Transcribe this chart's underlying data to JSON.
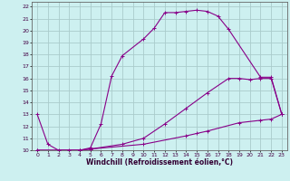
{
  "xlabel": "Windchill (Refroidissement éolien,°C)",
  "background_color": "#cdf0f0",
  "grid_color": "#aacccc",
  "line_color": "#880088",
  "xlim": [
    -0.5,
    23.5
  ],
  "ylim": [
    10,
    22.4
  ],
  "yticks": [
    10,
    11,
    12,
    13,
    14,
    15,
    16,
    17,
    18,
    19,
    20,
    21,
    22
  ],
  "xticks": [
    0,
    1,
    2,
    3,
    4,
    5,
    6,
    7,
    8,
    9,
    10,
    11,
    12,
    13,
    14,
    15,
    16,
    17,
    18,
    19,
    20,
    21,
    22,
    23
  ],
  "line1_x": [
    0,
    1,
    2,
    3,
    4,
    5,
    6,
    7,
    8,
    10,
    11,
    12,
    13,
    14,
    15,
    16,
    17,
    18,
    21,
    22,
    23
  ],
  "line1_y": [
    13,
    10.5,
    10,
    10,
    10,
    10.2,
    12.2,
    16.2,
    17.9,
    19.3,
    20.2,
    21.5,
    21.5,
    21.6,
    21.7,
    21.6,
    21.2,
    20.1,
    16.1,
    16.1,
    13.0
  ],
  "line2_x": [
    0,
    4,
    5,
    10,
    14,
    15,
    16,
    19,
    21,
    22,
    23
  ],
  "line2_y": [
    10,
    10,
    10.1,
    10.5,
    11.2,
    11.4,
    11.6,
    12.3,
    12.5,
    12.6,
    13.0
  ],
  "line3_x": [
    0,
    4,
    5,
    8,
    10,
    12,
    14,
    16,
    18,
    19,
    20,
    21,
    22,
    23
  ],
  "line3_y": [
    10,
    10,
    10.1,
    10.5,
    11.0,
    12.2,
    13.5,
    14.8,
    16.0,
    16.0,
    15.9,
    16.0,
    16.0,
    13.0
  ],
  "xlabel_fontsize": 5.5,
  "tick_fontsize": 4.5,
  "linewidth": 0.8,
  "markersize": 3.0
}
